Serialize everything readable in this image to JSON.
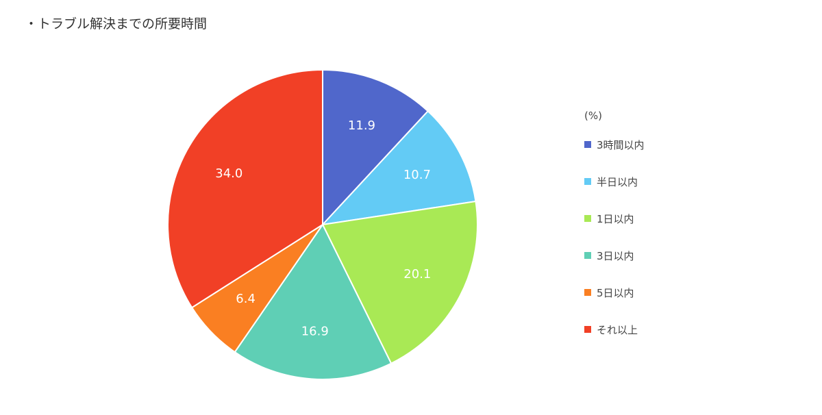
{
  "title": "・トラブル解決までの所要時間",
  "chart_data": {
    "type": "pie",
    "title": "・トラブル解決までの所要時間",
    "unit": "(%)",
    "legend_position": "right",
    "start_angle": "12 o'clock",
    "direction": "clockwise",
    "categories": [
      "3時間以内",
      "半日以内",
      "1日以内",
      "3日以内",
      "5日以内",
      "それ以上"
    ],
    "values": [
      11.9,
      10.7,
      20.1,
      16.9,
      6.4,
      34.0
    ],
    "labels": [
      "11.9",
      "10.7",
      "20.1",
      "16.9",
      "6.4",
      "34.0"
    ],
    "colors": [
      "#5067CB",
      "#63CBF5",
      "#A9E955",
      "#5FCFB5",
      "#FA7F22",
      "#F14026"
    ]
  }
}
